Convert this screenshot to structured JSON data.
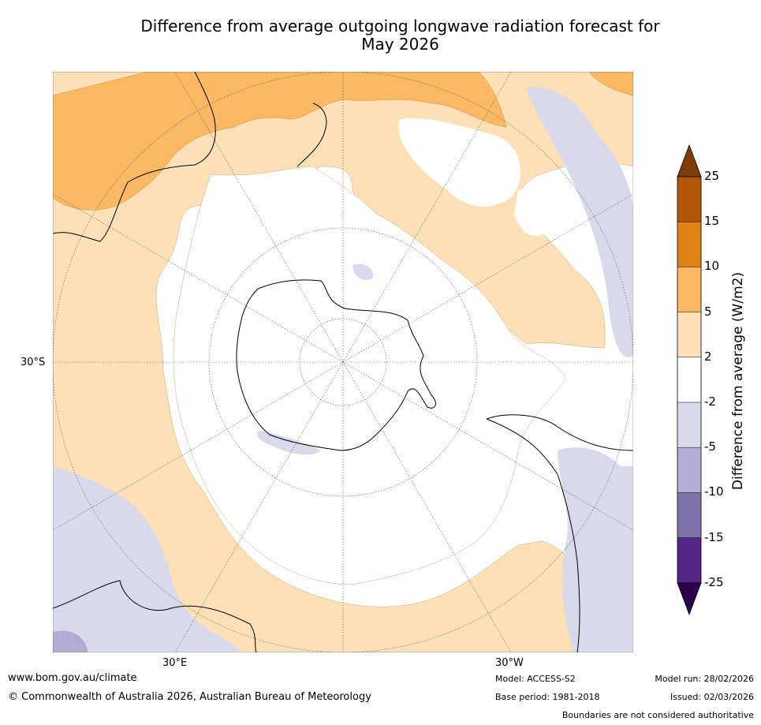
{
  "title_line1": "Difference from average outgoing longwave radiation forecast for",
  "title_line2": "May 2026",
  "map": {
    "projection": "south-polar stereographic",
    "lat_labels": {
      "left": "30°S",
      "bottom_left": "30°E",
      "bottom_right": "30°W"
    }
  },
  "legend": {
    "title": "Difference from average (W/m2)",
    "ticks": [
      "25",
      "15",
      "10",
      "5",
      "2",
      "-2",
      "-5",
      "-10",
      "-15",
      "-25"
    ],
    "bins": [
      {
        "range": "> 25",
        "color": "#7f3b08"
      },
      {
        "range": "15 to 25",
        "color": "#b35806"
      },
      {
        "range": "10 to 15",
        "color": "#e08214"
      },
      {
        "range": "5 to 10",
        "color": "#fdb863"
      },
      {
        "range": "2 to 5",
        "color": "#fee0b6"
      },
      {
        "range": "-2 to 2",
        "color": "#ffffff"
      },
      {
        "range": "-5 to -2",
        "color": "#d8daeb"
      },
      {
        "range": "-10 to -5",
        "color": "#b2abd2"
      },
      {
        "range": "-15 to -10",
        "color": "#8073ac"
      },
      {
        "range": "-25 to -15",
        "color": "#542788"
      },
      {
        "range": "< -25",
        "color": "#2d004b"
      }
    ]
  },
  "footer": {
    "url": "www.bom.gov.au/climate",
    "copyright": "© Commonwealth of Australia 2026, Australian Bureau of Meteorology",
    "model": "Model: ACCESS-S2",
    "base_period": "Base period: 1981-2018",
    "model_run": "Model run: 28/02/2026",
    "issued": "Issued: 02/03/2026",
    "disclaimer": "Boundaries are not considered authoritative"
  }
}
